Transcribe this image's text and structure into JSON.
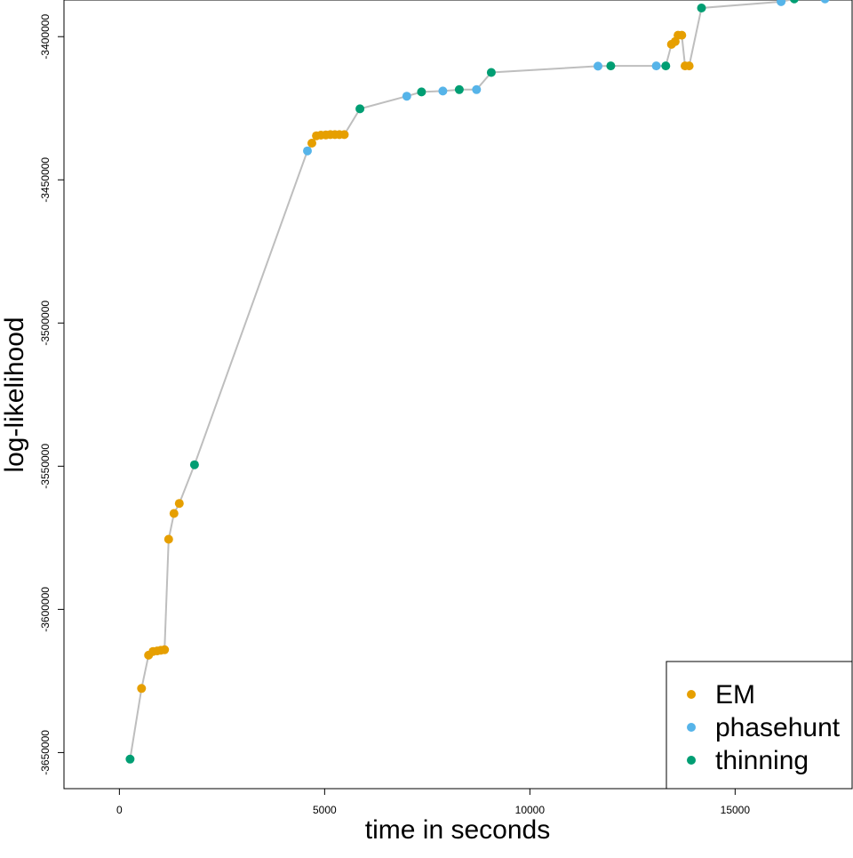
{
  "chart_data": {
    "type": "scatter",
    "connect_points": true,
    "line_color": "#bebebe",
    "xlabel": "time in seconds",
    "ylabel": "log-likelihood",
    "xlim": [
      -1350,
      17850
    ],
    "ylim": [
      -3662600,
      -3387200
    ],
    "x_ticks": [
      0,
      5000,
      10000,
      15000
    ],
    "x_tick_labels": [
      "0",
      "5000",
      "10000",
      "15000"
    ],
    "y_ticks": [
      -3400000,
      -3450000,
      -3500000,
      -3550000,
      -3600000,
      -3650000
    ],
    "y_tick_labels": [
      "-3400000",
      "-3450000",
      "-3500000",
      "-3550000",
      "-3600000",
      "-3650000"
    ],
    "grid": false,
    "legend_position": "bottom-right",
    "series": [
      {
        "name": "EM",
        "color": "#E69F00",
        "points": [
          [
            540,
            -3627600
          ],
          [
            710,
            -3616000
          ],
          [
            820,
            -3614700
          ],
          [
            920,
            -3614500
          ],
          [
            1010,
            -3614300
          ],
          [
            1100,
            -3614100
          ],
          [
            1200,
            -3575500
          ],
          [
            1330,
            -3566500
          ],
          [
            1460,
            -3563000
          ],
          [
            4690,
            -3437200
          ],
          [
            4800,
            -3434600
          ],
          [
            4910,
            -3434400
          ],
          [
            5030,
            -3434300
          ],
          [
            5140,
            -3434200
          ],
          [
            5250,
            -3434200
          ],
          [
            5360,
            -3434200
          ],
          [
            5480,
            -3434200
          ],
          [
            13450,
            -3402700
          ],
          [
            13540,
            -3401700
          ],
          [
            13610,
            -3399500
          ],
          [
            13700,
            -3399500
          ],
          [
            13780,
            -3410200
          ],
          [
            13880,
            -3410200
          ]
        ]
      },
      {
        "name": "phasehunt",
        "color": "#56B4E9",
        "points": [
          [
            4580,
            -3439900
          ],
          [
            7000,
            -3420800
          ],
          [
            7880,
            -3419000
          ],
          [
            8700,
            -3418500
          ],
          [
            11660,
            -3410300
          ],
          [
            13080,
            -3410200
          ],
          [
            16120,
            -3387800
          ],
          [
            17190,
            -3386800
          ]
        ]
      },
      {
        "name": "thinning",
        "color": "#009E73",
        "points": [
          [
            260,
            -3652300
          ],
          [
            1830,
            -3549500
          ],
          [
            5860,
            -3425200
          ],
          [
            7360,
            -3419300
          ],
          [
            8280,
            -3418500
          ],
          [
            9060,
            -3412500
          ],
          [
            11970,
            -3410200
          ],
          [
            13310,
            -3410200
          ],
          [
            14180,
            -3390000
          ],
          [
            16440,
            -3386800
          ]
        ]
      }
    ],
    "order": [
      [
        "thinning",
        0
      ],
      [
        "EM",
        0
      ],
      [
        "EM",
        1
      ],
      [
        "EM",
        2
      ],
      [
        "EM",
        3
      ],
      [
        "EM",
        4
      ],
      [
        "EM",
        5
      ],
      [
        "EM",
        6
      ],
      [
        "EM",
        7
      ],
      [
        "EM",
        8
      ],
      [
        "thinning",
        1
      ],
      [
        "phasehunt",
        0
      ],
      [
        "EM",
        9
      ],
      [
        "EM",
        10
      ],
      [
        "EM",
        11
      ],
      [
        "EM",
        12
      ],
      [
        "EM",
        13
      ],
      [
        "EM",
        14
      ],
      [
        "EM",
        15
      ],
      [
        "EM",
        16
      ],
      [
        "thinning",
        2
      ],
      [
        "phasehunt",
        1
      ],
      [
        "thinning",
        3
      ],
      [
        "phasehunt",
        2
      ],
      [
        "thinning",
        4
      ],
      [
        "phasehunt",
        3
      ],
      [
        "thinning",
        5
      ],
      [
        "phasehunt",
        4
      ],
      [
        "thinning",
        6
      ],
      [
        "phasehunt",
        5
      ],
      [
        "thinning",
        7
      ],
      [
        "EM",
        17
      ],
      [
        "EM",
        18
      ],
      [
        "EM",
        19
      ],
      [
        "EM",
        20
      ],
      [
        "EM",
        21
      ],
      [
        "EM",
        22
      ],
      [
        "thinning",
        8
      ],
      [
        "phasehunt",
        6
      ],
      [
        "thinning",
        9
      ],
      [
        "phasehunt",
        7
      ]
    ],
    "legend": [
      {
        "label": "EM",
        "color": "#E69F00"
      },
      {
        "label": "phasehunt",
        "color": "#56B4E9"
      },
      {
        "label": "thinning",
        "color": "#009E73"
      }
    ]
  }
}
